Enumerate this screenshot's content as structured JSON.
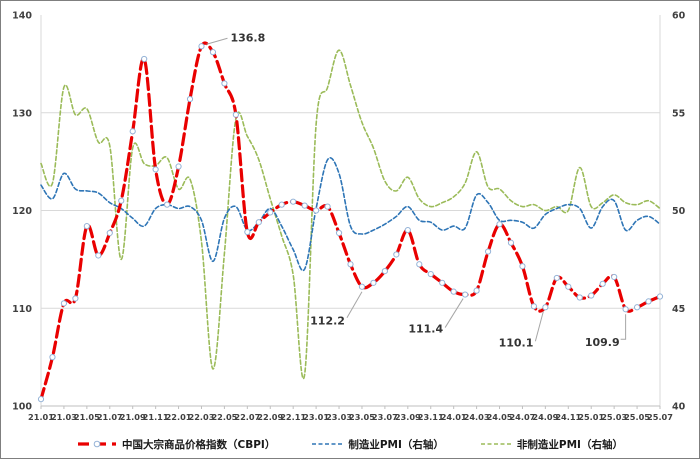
{
  "chart_data": {
    "type": "line",
    "title": "",
    "categories": [
      "21.01",
      "21.02",
      "21.03",
      "21.04",
      "21.05",
      "21.06",
      "21.07",
      "21.08",
      "21.09",
      "21.10",
      "21.11",
      "21.12",
      "22.01",
      "22.02",
      "22.03",
      "22.04",
      "22.05",
      "22.06",
      "22.07",
      "22.08",
      "22.09",
      "22.10",
      "22.11",
      "22.12",
      "23.01",
      "23.02",
      "23.03",
      "23.04",
      "23.05",
      "23.06",
      "23.07",
      "23.08",
      "23.09",
      "23.10",
      "23.11",
      "23.12",
      "24.01",
      "24.02",
      "24.03",
      "24.04",
      "24.05",
      "24.06",
      "24.07",
      "24.08",
      "24.09",
      "24.10",
      "24.11",
      "24.12",
      "25.01",
      "25.02",
      "25.03",
      "25.04",
      "25.05",
      "25.06",
      "25.07"
    ],
    "x_tick_step": 2,
    "series": [
      {
        "name": "中国大宗商品价格指数（CBPI）",
        "axis": "left",
        "color": "#e90000",
        "marker": true,
        "marker_stroke": "#95b3d7",
        "values": [
          100.7,
          105.0,
          110.5,
          111.0,
          118.4,
          115.4,
          117.7,
          121.0,
          128.1,
          135.5,
          124.2,
          120.6,
          124.5,
          131.4,
          136.8,
          136.2,
          133.0,
          129.8,
          117.8,
          118.8,
          119.8,
          120.6,
          120.9,
          120.5,
          120.0,
          120.4,
          117.7,
          114.5,
          112.2,
          112.6,
          113.8,
          115.5,
          118.0,
          114.5,
          113.5,
          112.6,
          111.7,
          111.4,
          111.8,
          115.8,
          118.6,
          116.7,
          114.3,
          110.2,
          110.1,
          113.1,
          112.2,
          111.1,
          111.3,
          112.5,
          113.2,
          109.9,
          110.1,
          110.7,
          111.2
        ]
      },
      {
        "name": "制造业PMI（右轴）",
        "axis": "right",
        "color": "#2e75b6",
        "marker": false,
        "values": [
          51.3,
          50.6,
          51.9,
          51.1,
          51.0,
          50.9,
          50.4,
          50.1,
          49.6,
          49.2,
          50.1,
          50.3,
          50.1,
          50.2,
          49.5,
          47.4,
          49.6,
          50.2,
          49.0,
          49.4,
          50.1,
          49.2,
          48.0,
          47.0,
          50.1,
          52.6,
          51.9,
          49.2,
          48.8,
          49.0,
          49.3,
          49.7,
          50.2,
          49.5,
          49.4,
          49.0,
          49.2,
          49.1,
          50.8,
          50.4,
          49.5,
          49.5,
          49.4,
          49.1,
          49.8,
          50.1,
          50.3,
          50.1,
          49.1,
          50.2,
          50.5,
          49.0,
          49.5,
          49.7,
          49.3
        ]
      },
      {
        "name": "非制造业PMI（右轴）",
        "axis": "right",
        "color": "#9bbb59",
        "marker": false,
        "values": [
          52.4,
          51.4,
          56.3,
          54.9,
          55.2,
          53.5,
          53.3,
          47.5,
          53.2,
          52.4,
          52.3,
          52.7,
          51.1,
          51.6,
          48.4,
          41.9,
          47.8,
          54.7,
          53.8,
          52.6,
          50.6,
          48.7,
          46.7,
          41.6,
          54.4,
          56.3,
          58.2,
          56.4,
          54.5,
          53.2,
          51.5,
          51.0,
          51.7,
          50.6,
          50.2,
          50.4,
          50.7,
          51.4,
          53.0,
          51.2,
          51.1,
          50.5,
          50.2,
          50.3,
          50.0,
          50.2,
          50.0,
          52.2,
          50.2,
          50.4,
          50.8,
          50.4,
          50.3,
          50.5,
          50.1
        ]
      }
    ],
    "left_axis": {
      "min": 100,
      "max": 140,
      "ticks": [
        100,
        110,
        120,
        130,
        140
      ]
    },
    "right_axis": {
      "min": 40,
      "max": 60,
      "ticks": [
        40,
        45,
        50,
        55,
        60
      ]
    },
    "grid": true,
    "legend_position": "bottom",
    "annotations": [
      {
        "text": "136.8",
        "series": 0,
        "index": 14
      },
      {
        "text": "112.2",
        "series": 0,
        "index": 28
      },
      {
        "text": "111.4",
        "series": 0,
        "index": 37
      },
      {
        "text": "110.1",
        "series": 0,
        "index": 44
      },
      {
        "text": "109.9",
        "series": 0,
        "index": 51
      }
    ],
    "colors": {
      "grid": "#d9d9d9",
      "axis_line": "#bfbfbf",
      "tick_text": "#404040",
      "annotation_text": "#333333",
      "leader_line": "#a6a6a6",
      "frame": "#7f7f7f"
    }
  }
}
